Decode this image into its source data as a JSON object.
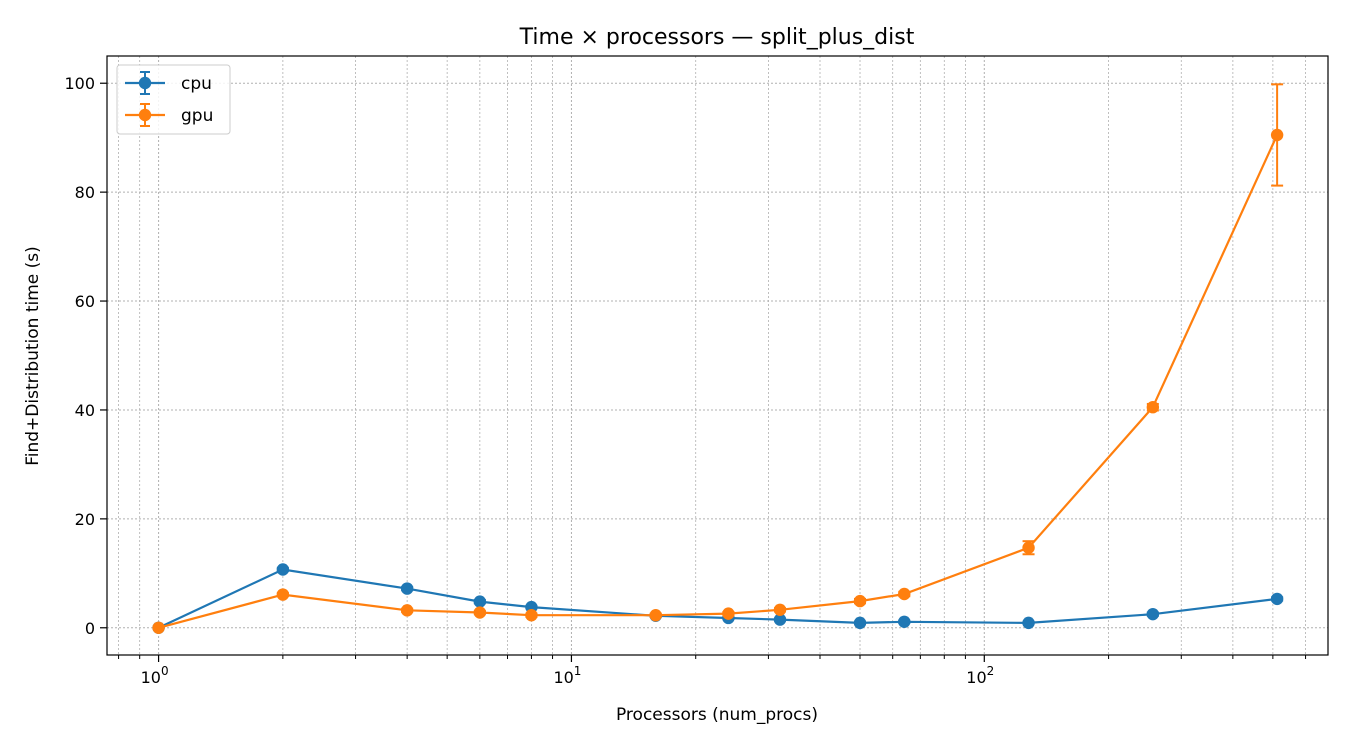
{
  "chart_data": {
    "type": "line",
    "title": "Time × processors — split_plus_dist",
    "xlabel": "Processors (num_procs)",
    "ylabel": "Find+Distribution time (s)",
    "xscale": "log",
    "xlim": [
      0.75,
      680
    ],
    "ylim": [
      -5,
      105
    ],
    "xticks": [
      {
        "value": 1,
        "base": "10",
        "exp": "0"
      },
      {
        "value": 10,
        "base": "10",
        "exp": "1"
      },
      {
        "value": 100,
        "base": "10",
        "exp": "2"
      }
    ],
    "yticks": [
      0,
      20,
      40,
      60,
      80,
      100
    ],
    "grid": true,
    "grid_minor": true,
    "legend_position": "top-left",
    "series": [
      {
        "name": "cpu",
        "color": "#1f77b4",
        "x": [
          1,
          2,
          4,
          6,
          8,
          16,
          24,
          32,
          50,
          64,
          128,
          256,
          512
        ],
        "y": [
          0,
          10.7,
          7.2,
          4.8,
          3.8,
          2.2,
          1.8,
          1.5,
          0.9,
          1.1,
          0.9,
          2.5,
          5.3
        ],
        "yerr": [
          0,
          0.3,
          0.3,
          0.3,
          0.2,
          0.2,
          0.2,
          0.2,
          0.2,
          0.2,
          0.2,
          0.3,
          0.3
        ]
      },
      {
        "name": "gpu",
        "color": "#ff7f0e",
        "x": [
          1,
          2,
          4,
          6,
          8,
          16,
          24,
          32,
          50,
          64,
          128,
          256,
          512
        ],
        "y": [
          0,
          6.1,
          3.2,
          2.8,
          2.3,
          2.3,
          2.6,
          3.3,
          4.9,
          6.2,
          14.7,
          40.5,
          90.5
        ],
        "yerr": [
          0,
          0.3,
          0.3,
          0.3,
          0.3,
          0.3,
          0.3,
          0.3,
          0.4,
          0.4,
          1.2,
          0.6,
          9.3
        ]
      }
    ]
  }
}
